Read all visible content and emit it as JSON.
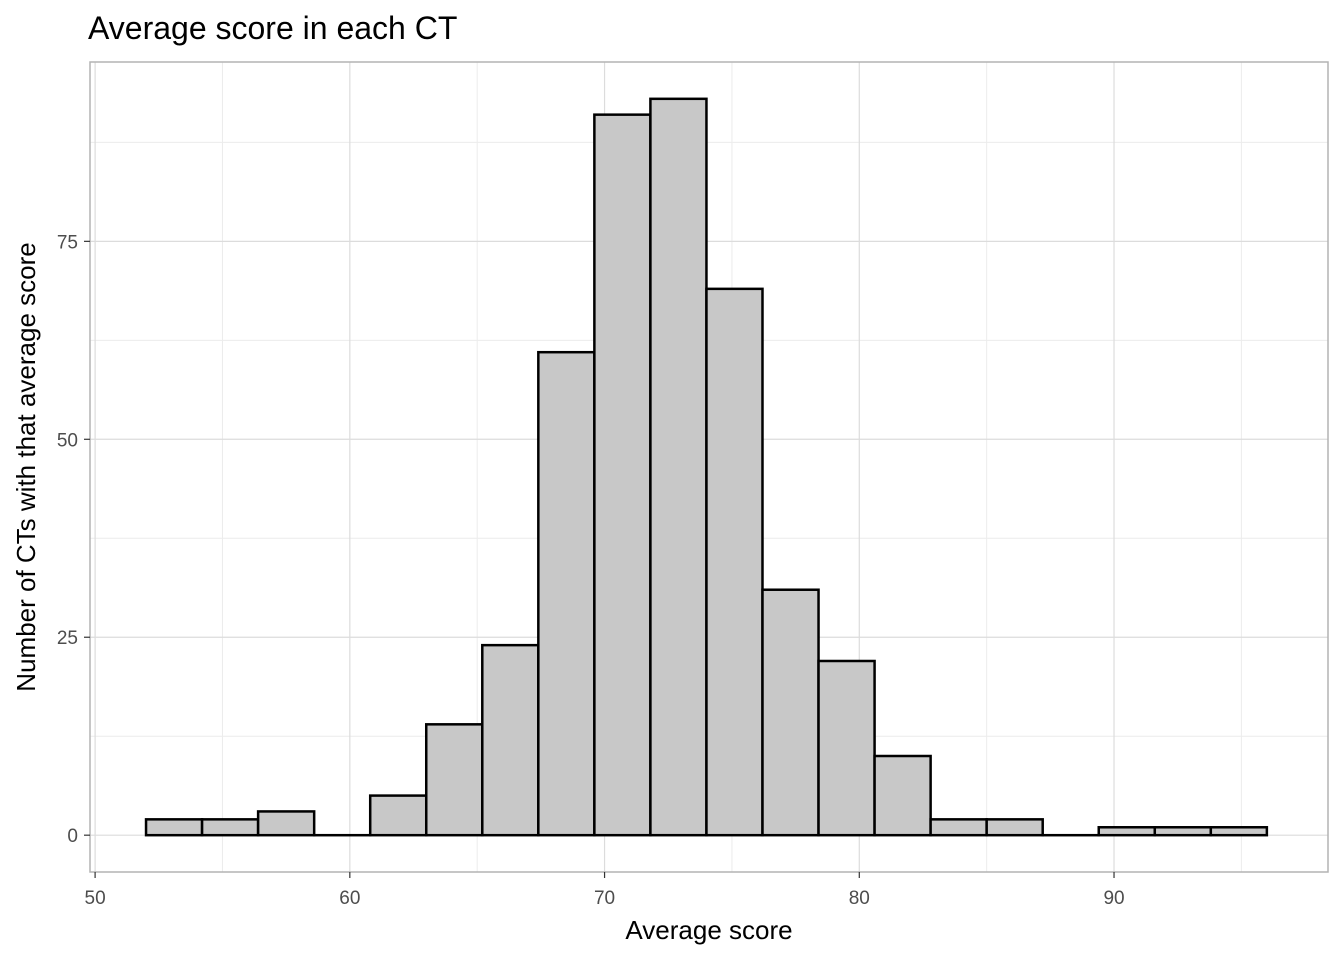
{
  "chart_data": {
    "type": "bar",
    "title": "Average score in each CT",
    "xlabel": "Average score",
    "ylabel": "Number of CTs with that average score",
    "xlim": [
      49.8,
      98.4
    ],
    "ylim": [
      -4.65,
      97.65
    ],
    "x_ticks": [
      50,
      60,
      70,
      80,
      90
    ],
    "x_tick_labels": [
      "50",
      "60",
      "70",
      "80",
      "90"
    ],
    "y_ticks": [
      0,
      25,
      50,
      75
    ],
    "y_tick_labels": [
      "0",
      "25",
      "50",
      "75"
    ],
    "grid": true,
    "legend": "none",
    "bin_width": 2.2,
    "bin_starts": [
      52.0,
      54.2,
      56.4,
      58.6,
      60.8,
      63.0,
      65.2,
      67.4,
      69.6,
      71.8,
      74.0,
      76.2,
      78.4,
      80.6,
      82.8,
      85.0,
      87.2,
      89.4,
      91.6,
      93.8
    ],
    "values": [
      2,
      2,
      3,
      0,
      5,
      14,
      24,
      61,
      91,
      93,
      69,
      31,
      22,
      10,
      2,
      2,
      0,
      1,
      1,
      1
    ],
    "colors": {
      "bar_fill": "#c8c8c8",
      "bar_stroke": "#000000",
      "grid_major": "#dcdcdc",
      "grid_minor": "#ececec",
      "panel_border": "#b3b3b3"
    }
  }
}
